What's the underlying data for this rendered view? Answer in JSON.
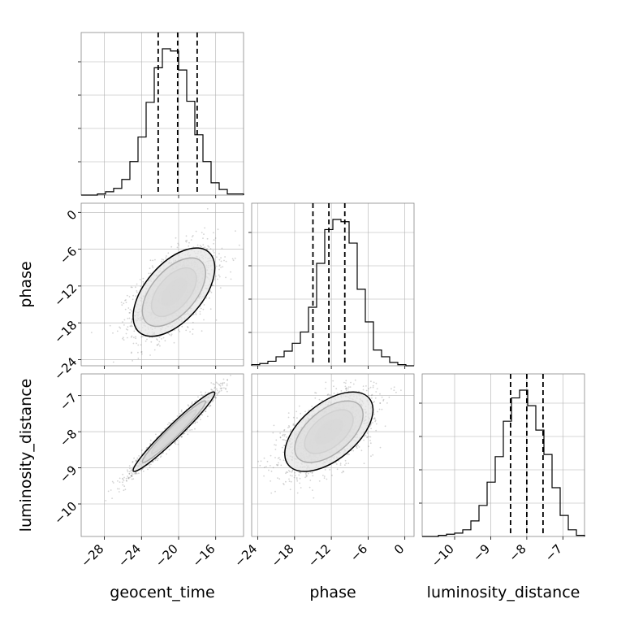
{
  "chart_data": {
    "type": "corner",
    "parameters": [
      "geocent_time",
      "phase",
      "luminosity_distance"
    ],
    "axis_labels": {
      "x": [
        "geocent_time",
        "phase",
        "luminosity_distance"
      ],
      "y": [
        "phase",
        "luminosity_distance"
      ]
    },
    "ranges": {
      "geocent_time": [
        -30.5,
        -13.0
      ],
      "phase": [
        -25.0,
        1.5
      ],
      "luminosity_distance": [
        -10.9,
        -6.4
      ]
    },
    "ticks": {
      "geocent_time": [
        -28,
        -24,
        -20,
        -16
      ],
      "phase": [
        -24,
        -18,
        -12,
        -6,
        0
      ],
      "luminosity_distance": [
        -10,
        -9,
        -8,
        -7
      ]
    },
    "tick_labels": {
      "geocent_time": [
        "−28",
        "−24",
        "−20",
        "−16"
      ],
      "phase": [
        "−24",
        "−18",
        "−12",
        "−6",
        "0"
      ],
      "luminosity_distance": [
        "−10",
        "−9",
        "−8",
        "−7"
      ]
    },
    "phase_y_tick_labels": [
      "0",
      "−6",
      "−12",
      "−18",
      "−24"
    ],
    "quantiles": {
      "geocent_time": [
        -22.2,
        -20.1,
        -18.0
      ],
      "phase": [
        -15.0,
        -12.4,
        -9.8
      ],
      "luminosity_distance": [
        -8.45,
        -8.0,
        -7.55
      ]
    },
    "histograms": {
      "geocent_time": {
        "edges": [
          -30.5,
          -29.625,
          -28.75,
          -27.875,
          -27.0,
          -26.125,
          -25.25,
          -24.375,
          -23.5,
          -22.625,
          -21.75,
          -20.875,
          -20.0,
          -19.125,
          -18.25,
          -17.375,
          -16.5,
          -15.625,
          -14.75,
          -13.875,
          -13.0
        ],
        "counts": [
          0,
          0,
          1,
          3,
          6,
          14,
          30,
          52,
          83,
          114,
          131,
          129,
          112,
          84,
          54,
          30,
          11,
          5,
          1,
          1
        ]
      },
      "phase": {
        "edges": [
          -25.0,
          -23.675,
          -22.35,
          -21.025,
          -19.7,
          -18.375,
          -17.05,
          -15.725,
          -14.4,
          -13.075,
          -11.75,
          -10.425,
          -9.1,
          -7.775,
          -6.45,
          -5.125,
          -3.8,
          -2.475,
          -1.15,
          0.175,
          1.5
        ],
        "counts": [
          1,
          2,
          4,
          8,
          13,
          20,
          30,
          52,
          91,
          121,
          130,
          128,
          109,
          68,
          39,
          14,
          8,
          3,
          1,
          0
        ]
      },
      "luminosity_distance": {
        "edges": [
          -10.9,
          -10.675,
          -10.45,
          -10.225,
          -10.0,
          -9.775,
          -9.55,
          -9.325,
          -9.1,
          -8.875,
          -8.65,
          -8.425,
          -8.2,
          -7.975,
          -7.75,
          -7.525,
          -7.3,
          -7.075,
          -6.85,
          -6.625,
          -6.4
        ],
        "counts": [
          0,
          0,
          1,
          2,
          3,
          6,
          14,
          28,
          49,
          72,
          104,
          125,
          132,
          118,
          96,
          74,
          44,
          19,
          6,
          1
        ]
      }
    },
    "scatter_2d": [
      {
        "x": "geocent_time",
        "y": "phase",
        "mean": [
          -20.5,
          -13.0
        ],
        "std": [
          2.2,
          3.6
        ],
        "corr": 0.55
      },
      {
        "x": "geocent_time",
        "y": "luminosity_distance",
        "mean": [
          -20.5,
          -8.0
        ],
        "std": [
          2.2,
          0.55
        ],
        "corr": 0.97
      },
      {
        "x": "phase",
        "y": "luminosity_distance",
        "mean": [
          -12.4,
          -8.0
        ],
        "std": [
          3.6,
          0.55
        ],
        "corr": 0.55
      }
    ],
    "contour_levels": [
      0.5,
      1.0,
      1.5,
      2.0
    ],
    "grid": true,
    "colors": {
      "line": "#000000",
      "points": "#555555",
      "grid": "#b0b0b0"
    }
  }
}
